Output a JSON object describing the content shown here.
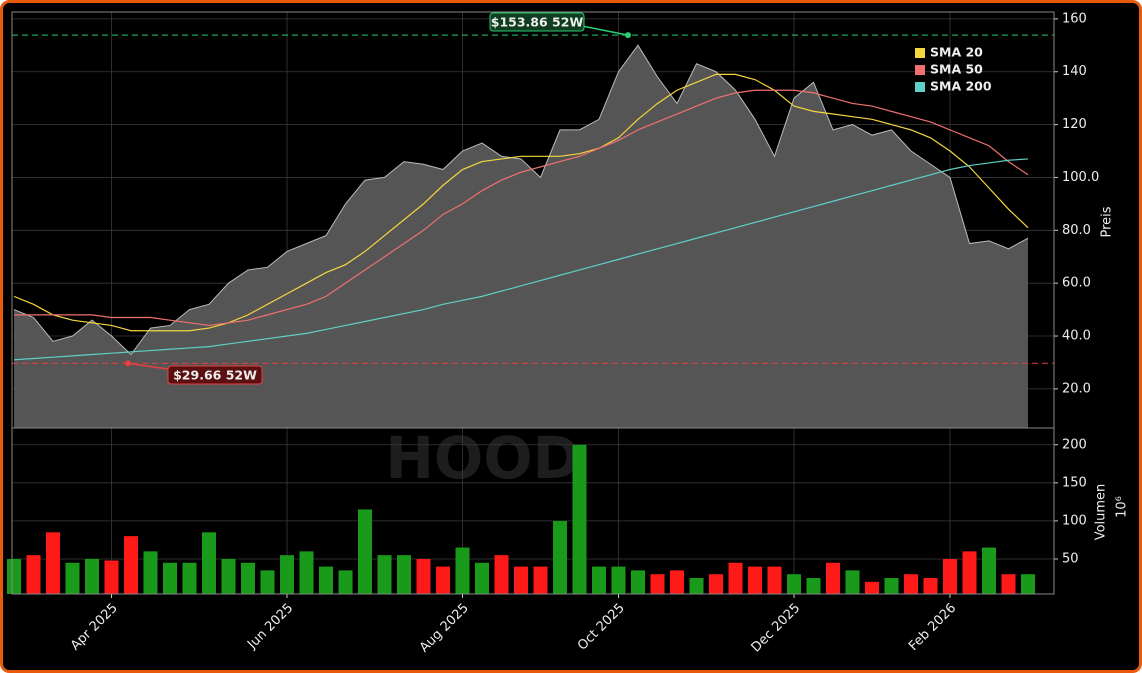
{
  "chart_data": [
    {
      "type": "line",
      "values": [
        50,
        47,
        38,
        40,
        46,
        40,
        33,
        43,
        44,
        50,
        52,
        60,
        65,
        66,
        72,
        75,
        78,
        90,
        99,
        100,
        106,
        105,
        103,
        110,
        113,
        108,
        107,
        100,
        118,
        118,
        122,
        140,
        150,
        138,
        128,
        143,
        140,
        133,
        122,
        108,
        130,
        136,
        118,
        120,
        116,
        118,
        110,
        105,
        100,
        75,
        76,
        73,
        77
      ],
      "color": "#5a5a5a",
      "series": [
        {
          "name": "SMA 20",
          "color": "#f5d63d",
          "values": [
            55,
            52,
            48,
            46,
            45,
            44,
            42,
            42,
            42,
            42,
            43,
            45,
            48,
            52,
            56,
            60,
            64,
            67,
            72,
            78,
            84,
            90,
            97,
            103,
            106,
            107,
            108,
            108,
            108,
            109,
            111,
            115,
            122,
            128,
            133,
            136,
            139,
            139,
            137,
            133,
            127,
            125,
            124,
            123,
            122,
            120,
            118,
            115,
            110,
            104,
            96,
            88,
            81
          ]
        },
        {
          "name": "SMA 50",
          "color": "#f07070",
          "values": [
            48,
            48,
            48,
            48,
            48,
            47,
            47,
            47,
            46,
            45,
            44,
            45,
            46,
            48,
            50,
            52,
            55,
            60,
            65,
            70,
            75,
            80,
            86,
            90,
            95,
            99,
            102,
            104,
            106,
            108,
            111,
            114,
            118,
            121,
            124,
            127,
            130,
            132,
            133,
            133,
            133,
            132,
            130,
            128,
            127,
            125,
            123,
            121,
            118,
            115,
            112,
            106,
            101
          ]
        },
        {
          "name": "SMA 200",
          "color": "#5fcfc8",
          "values": [
            31,
            31.5,
            32,
            32.5,
            33,
            33.5,
            34,
            34.5,
            35,
            35.5,
            36,
            37,
            38,
            39,
            40,
            41,
            42.5,
            44,
            45.5,
            47,
            48.5,
            50,
            52,
            53.5,
            55,
            57,
            59,
            61,
            63,
            65,
            67,
            69,
            71,
            73,
            75,
            77,
            79,
            81,
            83,
            85,
            87,
            89,
            91,
            93,
            95,
            97,
            99,
            101,
            103,
            104.5,
            105.5,
            106.5,
            107
          ]
        }
      ],
      "annotations": [
        {
          "text": "$153.86 52W",
          "value": 153.86,
          "color": "#2ecc71"
        },
        {
          "text": "$29.66 52W",
          "value": 29.66,
          "color": "#e84040"
        }
      ],
      "ylabel": "Preis",
      "ylim": [
        5.2,
        162.6
      ],
      "yticks": [
        {
          "value": 20,
          "label": "20.0"
        },
        {
          "value": 40,
          "label": "40.0"
        },
        {
          "value": 60,
          "label": "60.0"
        },
        {
          "value": 80,
          "label": "80.0"
        },
        {
          "value": 100,
          "label": "100.0"
        },
        120,
        140,
        160
      ],
      "grid": true,
      "watermark": "exsignale.trade"
    },
    {
      "type": "bar",
      "categories": [
        null,
        null,
        null,
        null,
        null,
        "Apr 2025",
        null,
        null,
        null,
        null,
        null,
        null,
        null,
        null,
        "Jun 2025",
        null,
        null,
        null,
        null,
        null,
        null,
        null,
        null,
        "Aug 2025",
        null,
        null,
        null,
        null,
        null,
        null,
        null,
        "Oct 2025",
        null,
        null,
        null,
        null,
        null,
        null,
        null,
        null,
        "Dec 2025",
        null,
        null,
        null,
        null,
        null,
        null,
        null,
        "Feb 2026",
        null,
        null,
        null,
        null
      ],
      "values": [
        50,
        55,
        85,
        45,
        50,
        48,
        80,
        60,
        45,
        45,
        85,
        50,
        45,
        35,
        55,
        60,
        40,
        35,
        115,
        55,
        55,
        50,
        40,
        65,
        45,
        55,
        40,
        40,
        100,
        200,
        40,
        40,
        35,
        30,
        35,
        25,
        30,
        45,
        40,
        40,
        30,
        25,
        45,
        35,
        20,
        25,
        30,
        25,
        50,
        60,
        65,
        30,
        30
      ],
      "up_color": "#1a9a1a",
      "down_color": "#ff1a1a",
      "ylabel": "Volumen",
      "offset_label": "10⁶",
      "ylim": [
        4,
        222
      ],
      "yticks": [
        50,
        100,
        150,
        200
      ],
      "grid": true,
      "watermark": "HOOD"
    }
  ]
}
